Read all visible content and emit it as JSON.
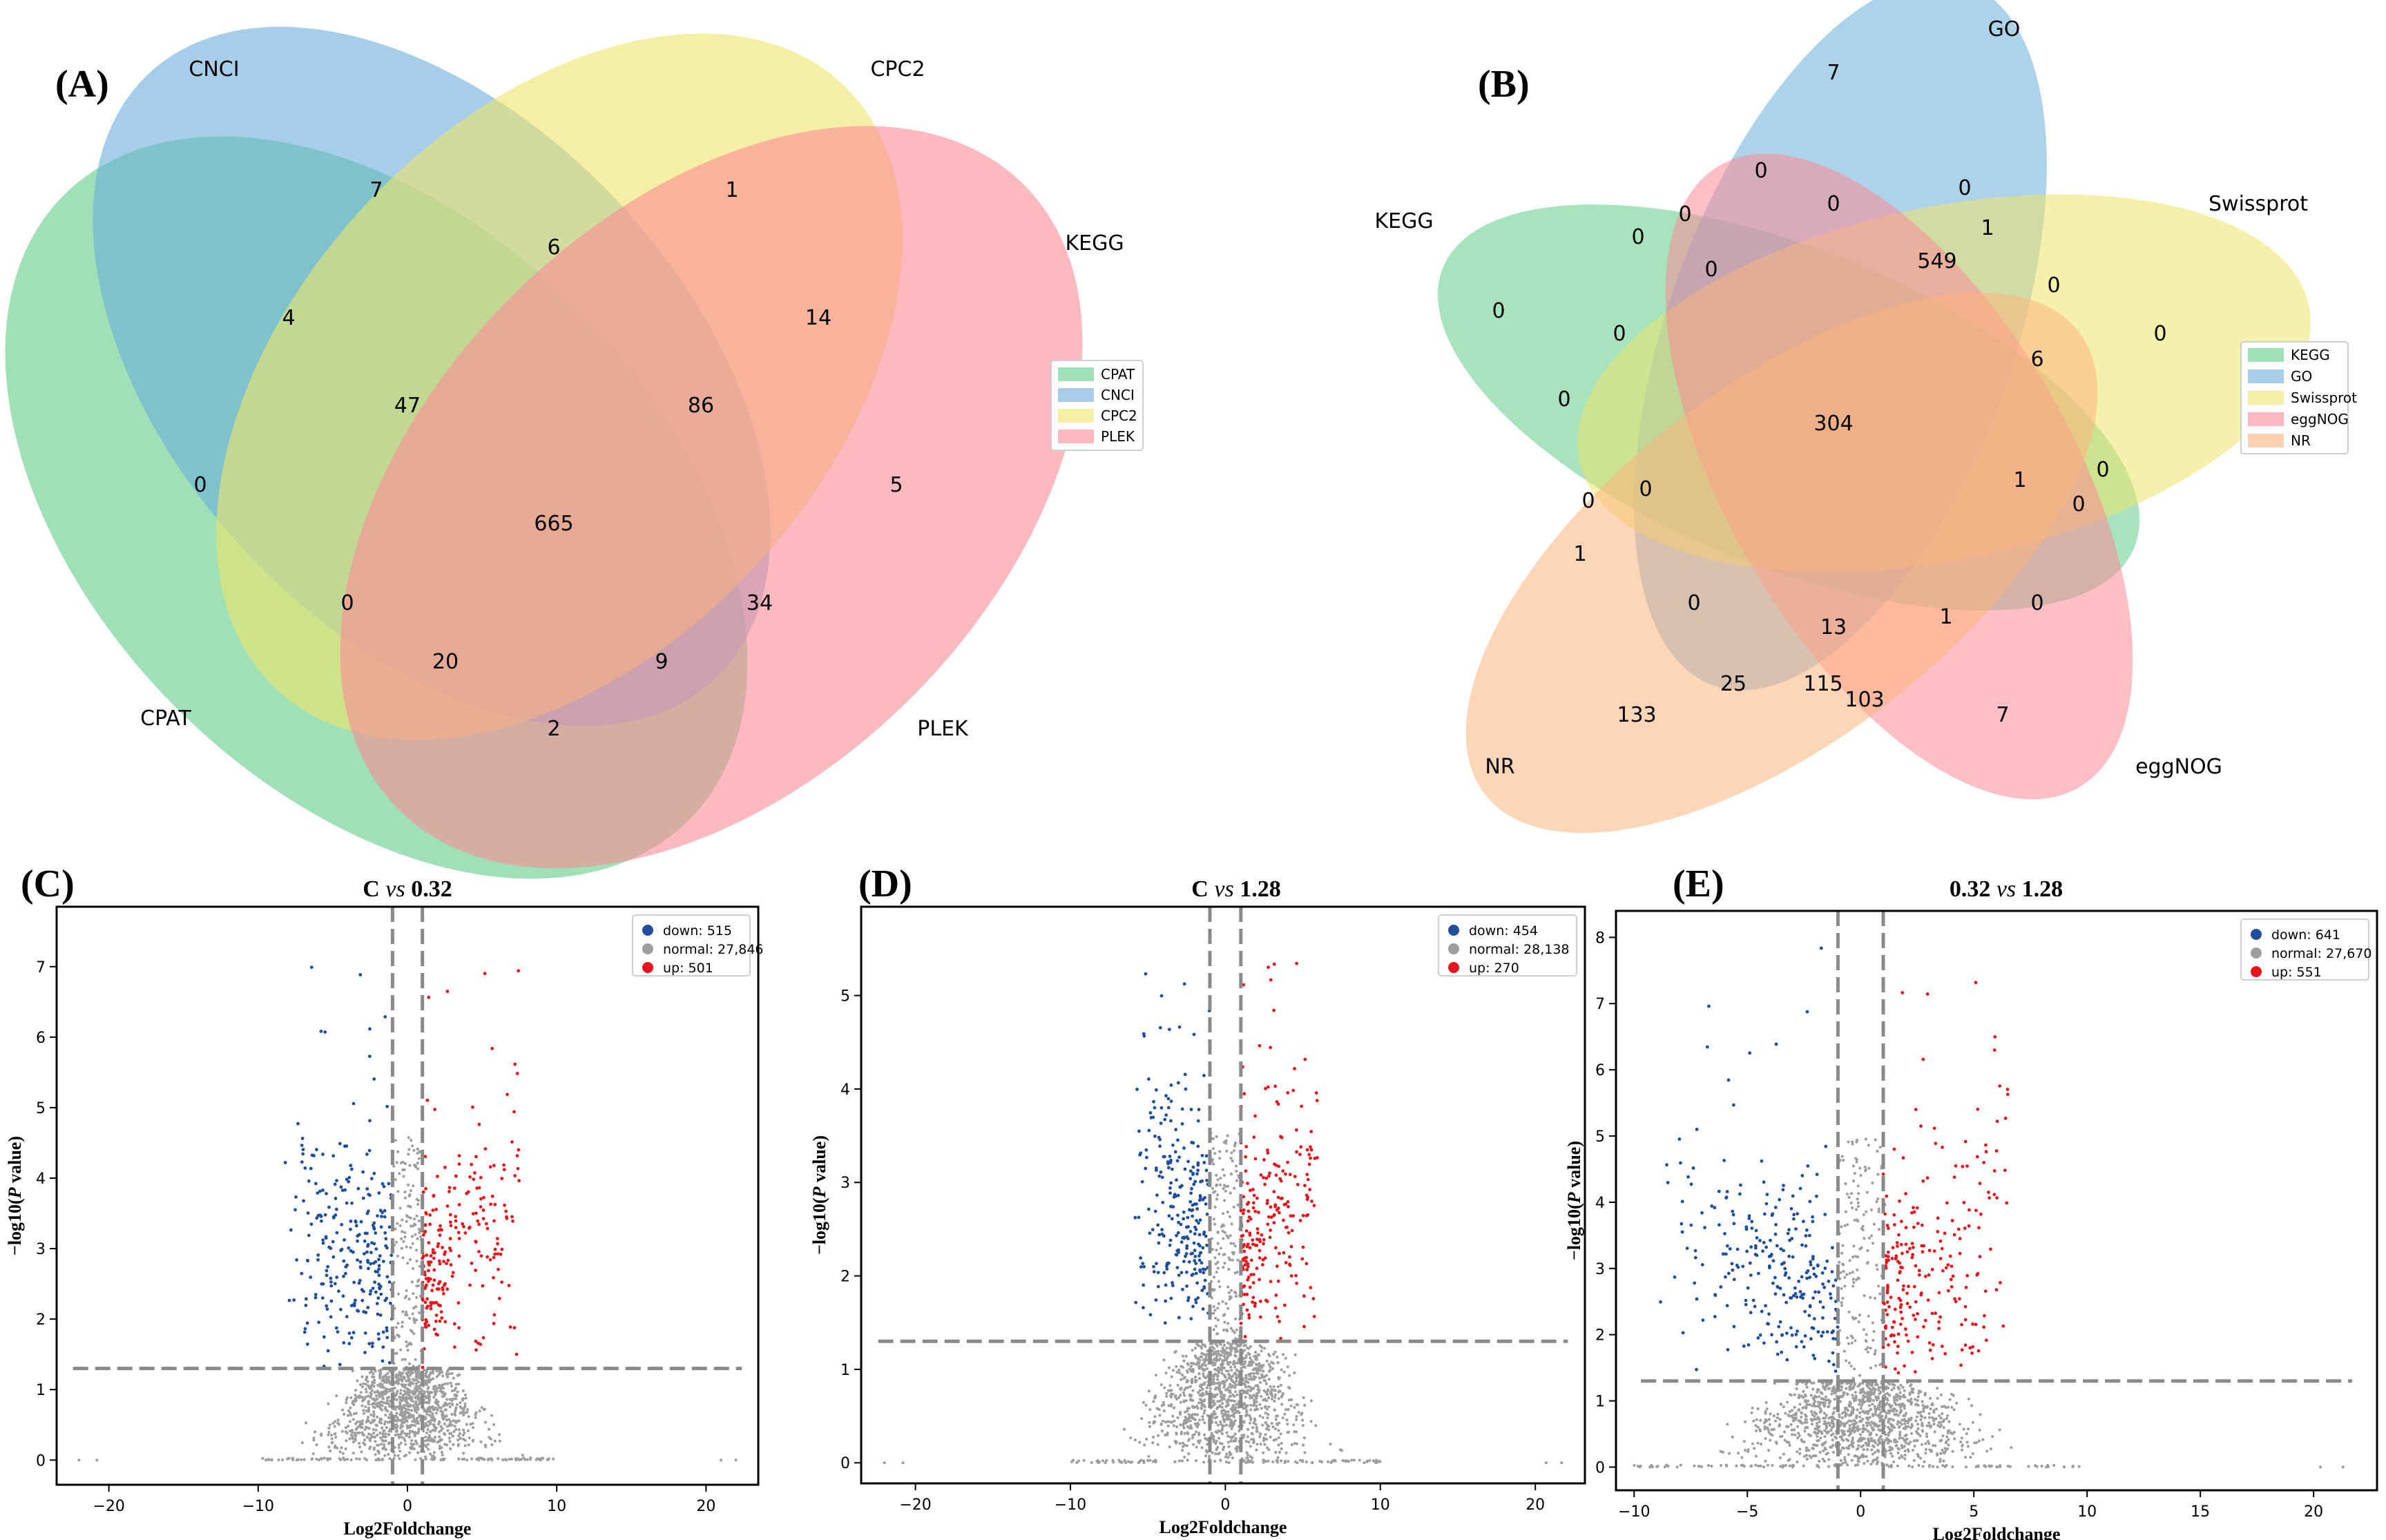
{
  "panels": {
    "A": {
      "letter": "(A)",
      "set_labels": [
        "CNCI",
        "CPC2",
        "KEGG",
        "CPAT",
        "PLEK"
      ],
      "legend": [
        {
          "name": "CPAT",
          "color": "#5fcc86"
        },
        {
          "name": "CNCI",
          "color": "#6aaedb"
        },
        {
          "name": "CPC2",
          "color": "#eee46a"
        },
        {
          "name": "PLEK",
          "color": "#fc8a96"
        }
      ],
      "counts": [
        "7",
        "1",
        "6",
        "4",
        "14",
        "47",
        "86",
        "0",
        "665",
        "5",
        "0",
        "34",
        "20",
        "9",
        "2"
      ]
    },
    "B": {
      "letter": "(B)",
      "set_labels": [
        "GO",
        "Swissprot",
        "KEGG",
        "NR",
        "eggNOG"
      ],
      "legend": [
        {
          "name": "KEGG",
          "color": "#5fcc86"
        },
        {
          "name": "GO",
          "color": "#6aaedb"
        },
        {
          "name": "Swissprot",
          "color": "#eee46a"
        },
        {
          "name": "eggNOG",
          "color": "#fc8a96"
        },
        {
          "name": "NR",
          "color": "#fcb47e"
        }
      ],
      "counts": [
        "7",
        "0",
        "0",
        "0",
        "0",
        "0",
        "1",
        "549",
        "0",
        "0",
        "0",
        "0",
        "0",
        "6",
        "0",
        "304",
        "0",
        "0",
        "1",
        "0",
        "0",
        "1",
        "0",
        "13",
        "1",
        "0",
        "25",
        "115",
        "103",
        "133",
        "7"
      ]
    }
  },
  "chart_data": [
    {
      "type": "scatter",
      "panel": "(C)",
      "title_left": "C",
      "title_mid": "vs",
      "title_right": "0.32",
      "xlabel": "Log2Foldchange",
      "ylabel_prefix": "−log10(",
      "ylabel_italic": "P",
      "ylabel_suffix": " value)",
      "xlim": [
        -23.5,
        23.5
      ],
      "ylim": [
        -0.35,
        7.85
      ],
      "xticks": [
        -20,
        -10,
        0,
        10,
        20
      ],
      "yticks": [
        0,
        1,
        2,
        3,
        4,
        5,
        6,
        7
      ],
      "fc_cutoff": [
        -1,
        1
      ],
      "p_cutoff": 1.3,
      "legend": [
        {
          "label": "down: 515",
          "color": "#1f4e9c"
        },
        {
          "label": "normal: 27,846",
          "color": "#9e9e9e"
        },
        {
          "label": "up: 501",
          "color": "#e8141b"
        }
      ],
      "series": [
        {
          "name": "down",
          "count": 515,
          "color": "#1f4e9c"
        },
        {
          "name": "normal",
          "count": 27846,
          "color": "#9e9e9e"
        },
        {
          "name": "up",
          "count": 501,
          "color": "#e8141b"
        }
      ],
      "gene_count_ranges": {
        "down_x": [
          -8.5,
          -1
        ],
        "up_x": [
          1,
          7.5
        ],
        "max_y": 7.4
      }
    },
    {
      "type": "scatter",
      "panel": "(D)",
      "title_left": "C",
      "title_mid": "vs",
      "title_right": "1.28",
      "xlabel": "Log2Foldchange",
      "ylabel_prefix": "−log10(",
      "ylabel_italic": "P",
      "ylabel_suffix": " value)",
      "xlim": [
        -23.5,
        23.2
      ],
      "ylim": [
        -0.22,
        5.95
      ],
      "xticks": [
        -20,
        -10,
        0,
        10,
        20
      ],
      "yticks": [
        0,
        1,
        2,
        3,
        4,
        5
      ],
      "fc_cutoff": [
        -1,
        1
      ],
      "p_cutoff": 1.3,
      "legend": [
        {
          "label": "down: 454",
          "color": "#1f4e9c"
        },
        {
          "label": "normal: 28,138",
          "color": "#9e9e9e"
        },
        {
          "label": "up: 270",
          "color": "#e8141b"
        }
      ],
      "series": [
        {
          "name": "down",
          "count": 454,
          "color": "#1f4e9c"
        },
        {
          "name": "normal",
          "count": 28138,
          "color": "#9e9e9e"
        },
        {
          "name": "up",
          "count": 270,
          "color": "#e8141b"
        }
      ],
      "gene_count_ranges": {
        "down_x": [
          -6,
          -1
        ],
        "up_x": [
          1,
          6
        ],
        "max_y": 5.7
      }
    },
    {
      "type": "scatter",
      "panel": "(E)",
      "title_left": "0.32",
      "title_mid": "vs",
      "title_right": "1.28",
      "xlabel": "Log2Foldchange",
      "ylabel_prefix": "−log10(",
      "ylabel_italic": "P",
      "ylabel_suffix": " value)",
      "xlim": [
        -10.8,
        22.8
      ],
      "ylim": [
        -0.35,
        8.4
      ],
      "xticks": [
        -10,
        -5,
        0,
        5,
        10,
        15,
        20
      ],
      "yticks": [
        0,
        1,
        2,
        3,
        4,
        5,
        6,
        7,
        8
      ],
      "fc_cutoff": [
        -1,
        1
      ],
      "p_cutoff": 1.3,
      "legend": [
        {
          "label": "down: 641",
          "color": "#1f4e9c"
        },
        {
          "label": "normal: 27,670",
          "color": "#9e9e9e"
        },
        {
          "label": "up: 551",
          "color": "#e8141b"
        }
      ],
      "series": [
        {
          "name": "down",
          "count": 641,
          "color": "#1f4e9c"
        },
        {
          "name": "normal",
          "count": 27670,
          "color": "#9e9e9e"
        },
        {
          "name": "up",
          "count": 551,
          "color": "#e8141b"
        }
      ],
      "gene_count_ranges": {
        "down_x": [
          -9,
          -1
        ],
        "up_x": [
          1,
          6.5
        ],
        "max_y": 8.0
      }
    }
  ]
}
